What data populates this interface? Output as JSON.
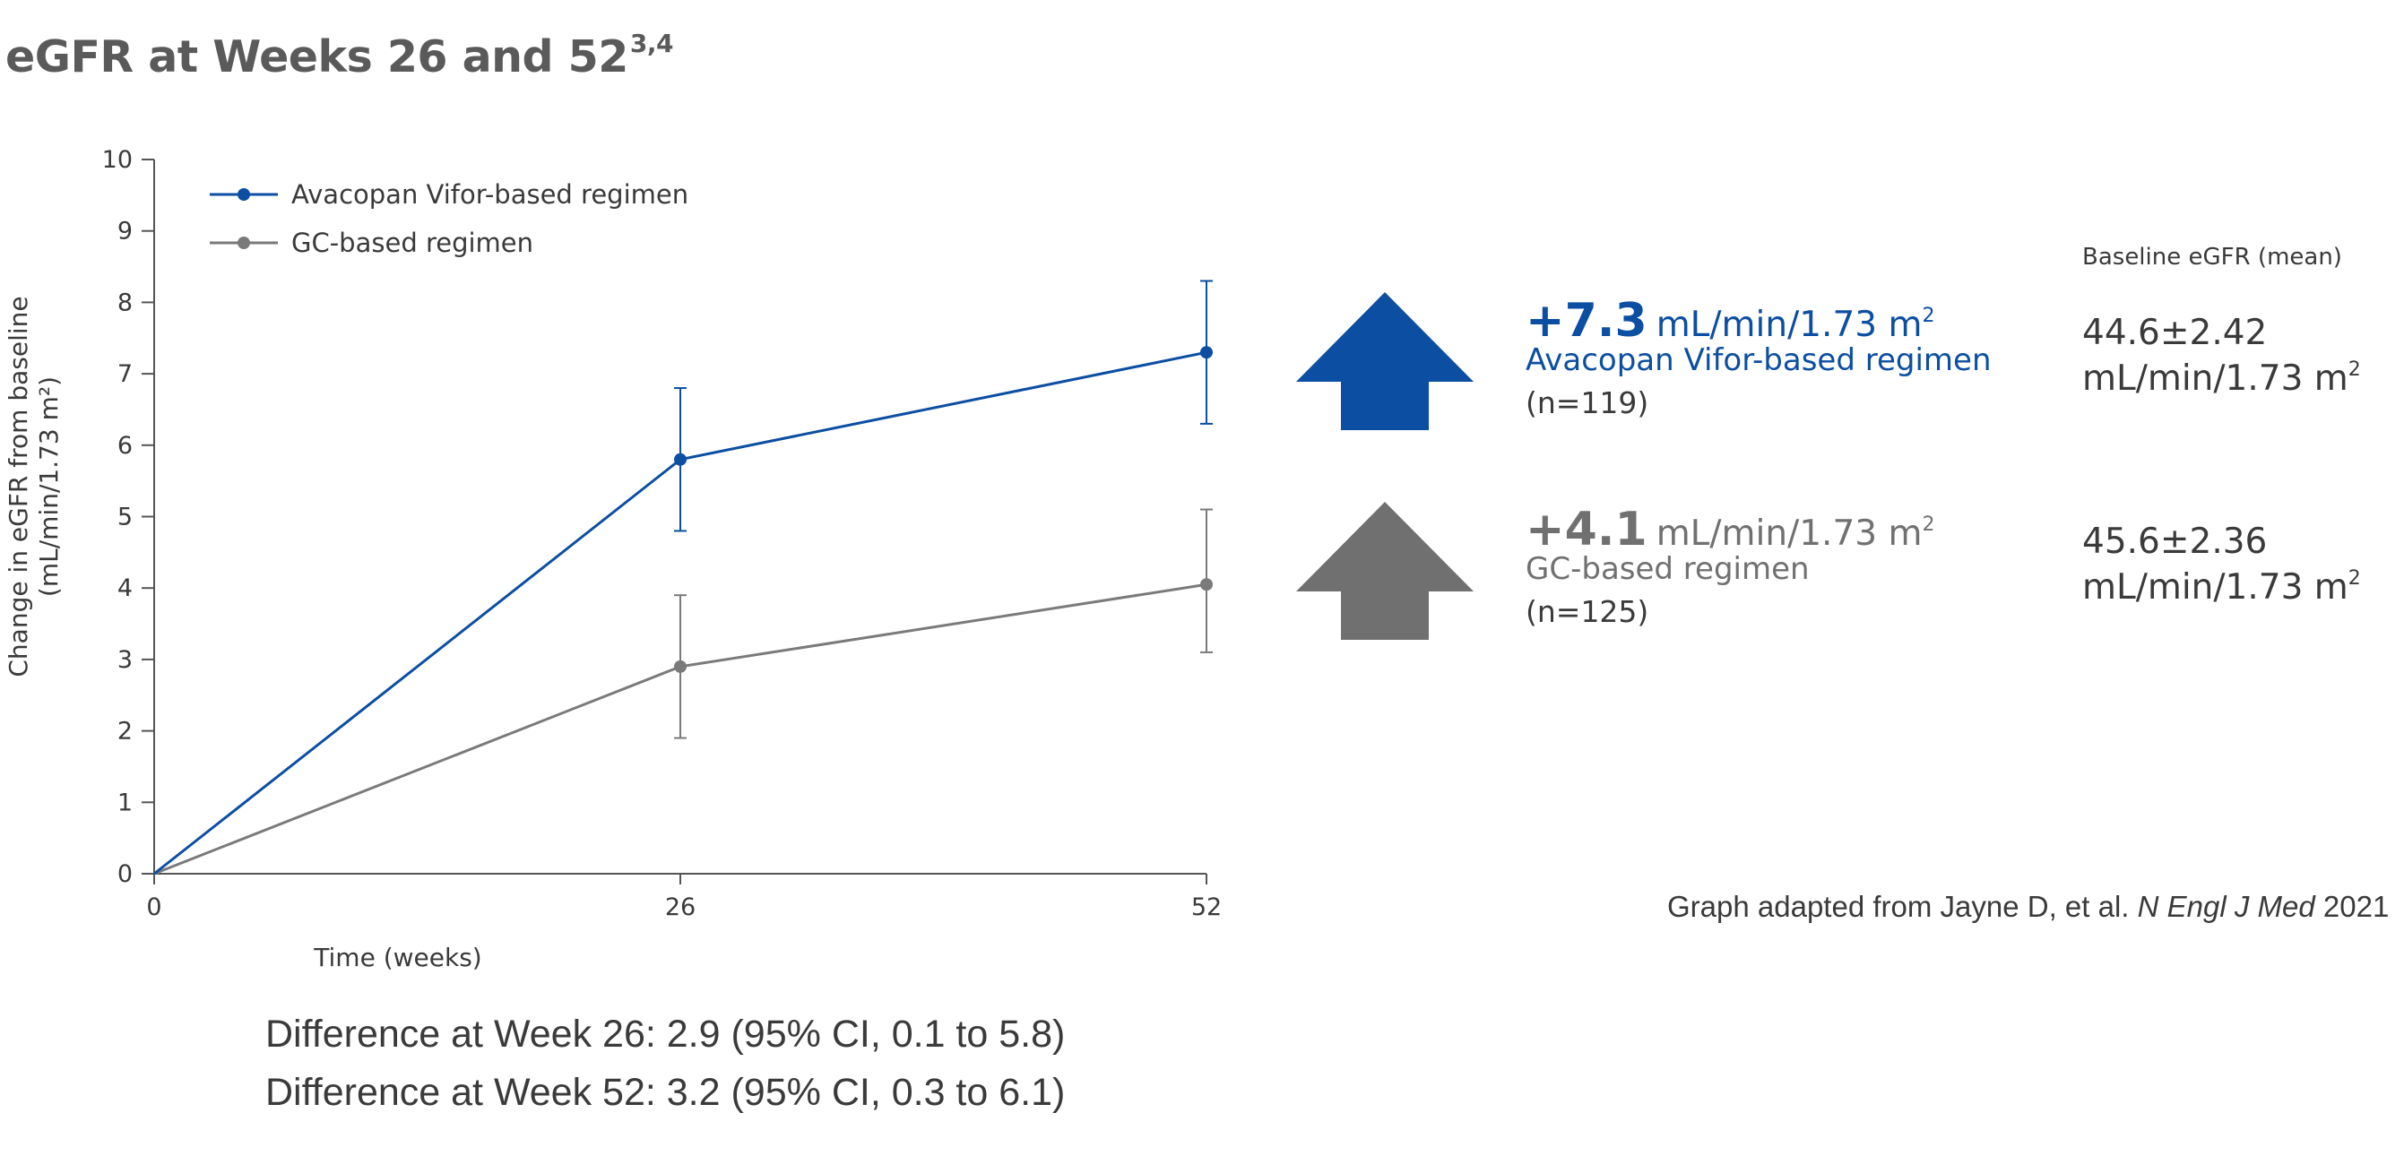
{
  "title": "eGFR at Weeks 26 and 52",
  "title_sup": "3,4",
  "chart_data": {
    "type": "line",
    "xlabel": "Time (weeks)",
    "ylabel_line1": "Change in eGFR from baseline",
    "ylabel_line2": "(mL/min/1.73 m²)",
    "x": [
      0,
      26,
      52
    ],
    "x_ticks": [
      "0",
      "26",
      "52"
    ],
    "ylim": [
      0,
      10
    ],
    "y_ticks": [
      "0",
      "1",
      "2",
      "3",
      "4",
      "5",
      "6",
      "7",
      "8",
      "9",
      "10"
    ],
    "grid": false,
    "legend_position": "top-left",
    "series": [
      {
        "name": "Avacopan Vifor-based regimen",
        "color": "#0b4ea2",
        "values": [
          0,
          5.8,
          7.3
        ],
        "err_low": [
          null,
          4.8,
          6.3
        ],
        "err_high": [
          null,
          6.8,
          8.3
        ]
      },
      {
        "name": "GC-based regimen",
        "color": "#7a7a7a",
        "values": [
          0,
          2.9,
          4.05
        ],
        "err_low": [
          null,
          1.9,
          3.1
        ],
        "err_high": [
          null,
          3.9,
          5.1
        ]
      }
    ]
  },
  "results": [
    {
      "delta": "+7.3",
      "unit": "mL/min/1.73 m",
      "unit_sup": "2",
      "regimen": "Avacopan Vifor-based regimen",
      "n": "(n=119)",
      "color": "#0b4ea2",
      "baseline_line1": "44.6±2.42",
      "baseline_line2": "mL/min/1.73 m",
      "baseline_sup": "2"
    },
    {
      "delta": "+4.1",
      "unit": "mL/min/1.73 m",
      "unit_sup": "2",
      "regimen": "GC-based regimen",
      "n": "(n=125)",
      "color": "#707070",
      "baseline_line1": "45.6±2.36",
      "baseline_line2": "mL/min/1.73 m",
      "baseline_sup": "2"
    }
  ],
  "baseline_header": "Baseline eGFR (mean)",
  "source": {
    "prefix": "Graph adapted from Jayne D, et al. ",
    "journal": "N Engl J Med",
    "year": " 2021"
  },
  "differences": [
    "Difference at Week 26: 2.9 (95% CI, 0.1 to 5.8)",
    "Difference at Week 52: 3.2 (95% CI, 0.3 to 6.1)"
  ],
  "colors": {
    "blue": "#0b4ea2",
    "gray": "#707070",
    "axis": "#555555"
  }
}
